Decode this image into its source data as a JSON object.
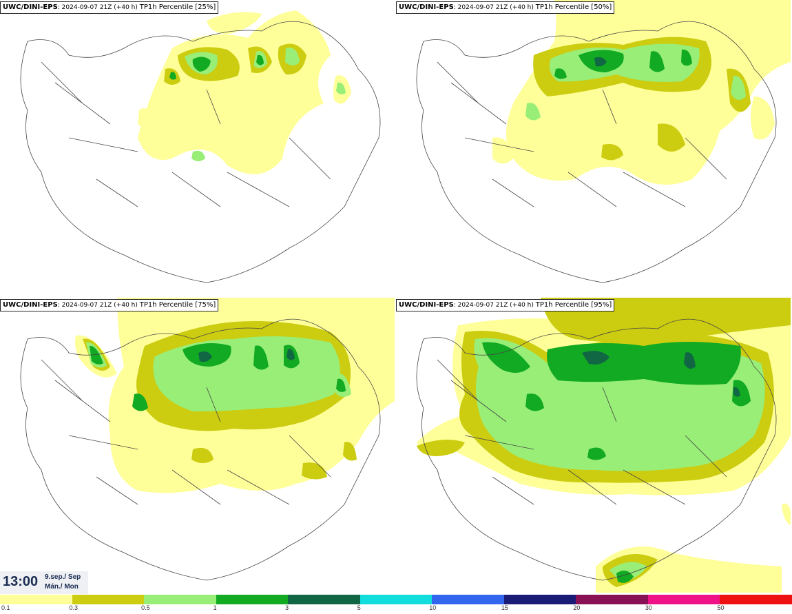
{
  "panels": [
    {
      "model": "UWC/DINI-EPS",
      "run": ": 2024-09-07 21Z (+40 h)",
      "param": "TP1h Percentile [25%]"
    },
    {
      "model": "UWC/DINI-EPS",
      "run": ": 2024-09-07 21Z (+40 h)",
      "param": "TP1h Percentile [50%]"
    },
    {
      "model": "UWC/DINI-EPS",
      "run": ": 2024-09-07 21Z (+40 h)",
      "param": "TP1h Percentile [75%]"
    },
    {
      "model": "UWC/DINI-EPS",
      "run": ": 2024-09-07 21Z (+40 h)",
      "param": "TP1h Percentile [95%]"
    }
  ],
  "valid_time": {
    "time": "13:00",
    "date_is": "9.sep./ Sep",
    "day_is": "Mán./ Mon"
  },
  "legend": {
    "colors": [
      "#ffff99",
      "#cccc11",
      "#99ee77",
      "#11aa22",
      "#116644",
      "#11dddd",
      "#3366ee",
      "#1a1a77",
      "#881155",
      "#ee1188",
      "#ee1111"
    ],
    "labels": [
      "0.1",
      "0.3",
      "0.5",
      "1",
      "3",
      "5",
      "10",
      "15",
      "20",
      "30",
      "50"
    ]
  }
}
